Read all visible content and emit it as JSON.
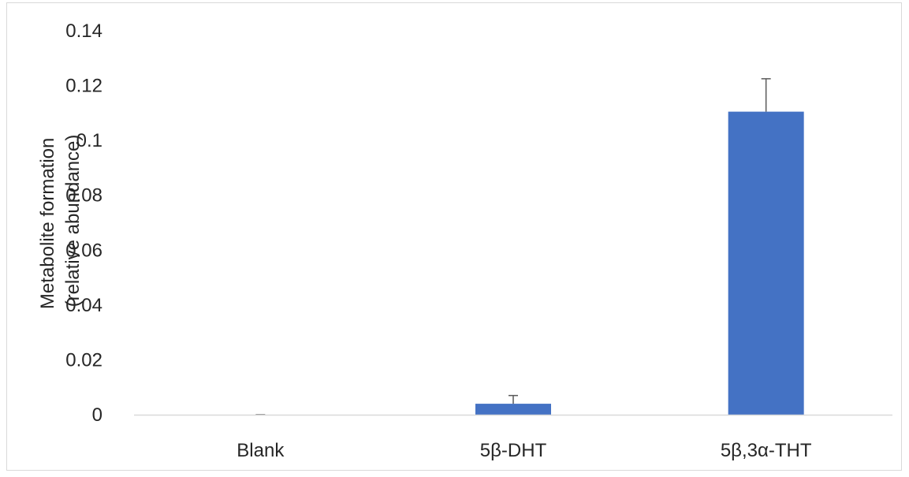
{
  "chart_data": {
    "type": "bar",
    "title": "",
    "xlabel": "",
    "ylabel_lines": [
      "Metabolite formation",
      "(relative abundance)"
    ],
    "categories": [
      "Blank",
      "5β-DHT",
      "5β,3α-THT"
    ],
    "values": [
      0.0,
      0.004,
      0.1105
    ],
    "error_upper": [
      0.0,
      0.003,
      0.012
    ],
    "ylim": [
      0,
      0.14
    ],
    "yticks": [
      0,
      0.02,
      0.04,
      0.06,
      0.08,
      0.1,
      0.12,
      0.14
    ],
    "ytick_labels": [
      "0",
      "0.02",
      "0.04",
      "0.06",
      "0.08",
      "0.1",
      "0.12",
      "0.14"
    ],
    "grid": false,
    "legend": "none",
    "bar_color": "#4472c4",
    "error_color": "#595959",
    "axis_color": "#d9d9d9"
  }
}
